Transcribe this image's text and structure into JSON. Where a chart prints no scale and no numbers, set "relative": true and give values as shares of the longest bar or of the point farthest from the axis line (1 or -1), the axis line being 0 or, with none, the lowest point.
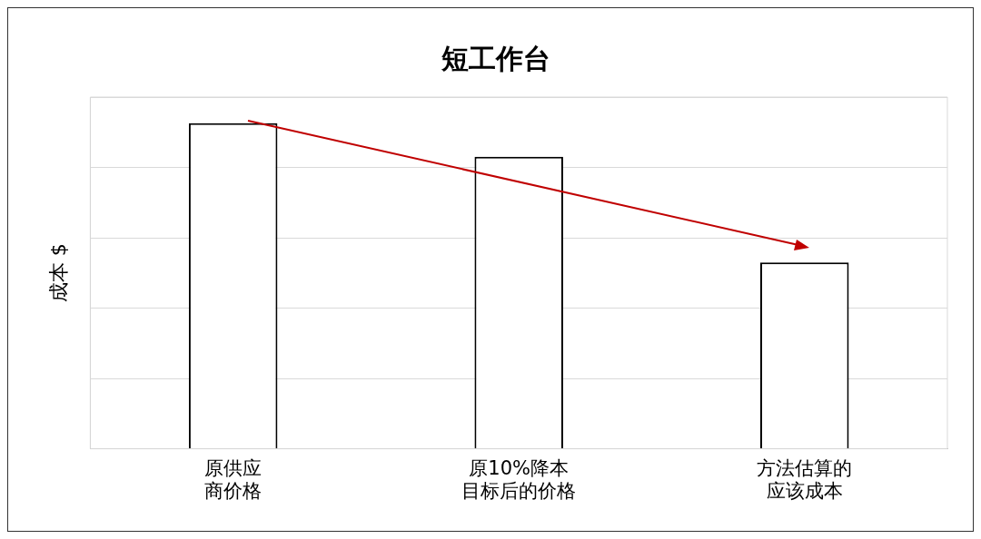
{
  "chart_data": {
    "type": "bar",
    "title": "短工作台",
    "ylabel": "成本 $",
    "categories": [
      "原供应商价格",
      "原10%降本目标后的价格",
      "方法估算的应该成本"
    ],
    "values": [
      1,
      0.897,
      0.572
    ],
    "color": "#ffffff",
    "relative": true,
    "grid": "y",
    "legend": false
  }
}
